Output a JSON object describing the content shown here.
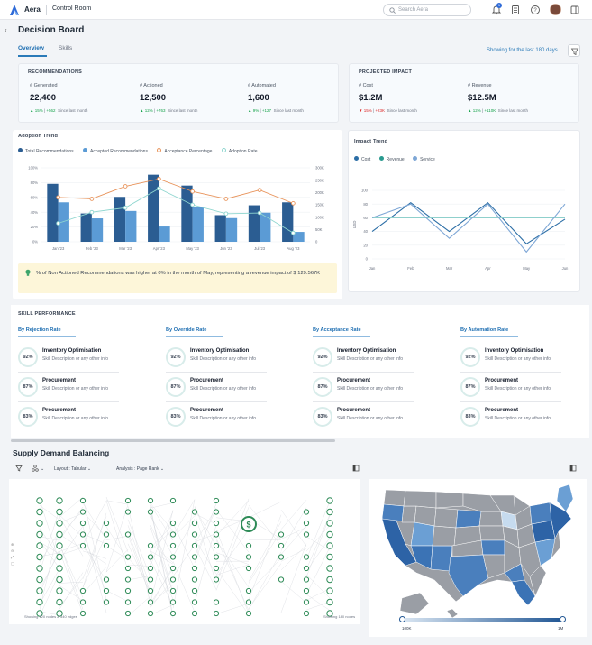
{
  "app": {
    "brand": "Aera",
    "name": "Control Room",
    "search_placeholder": "Search Aera",
    "notification_count": "1"
  },
  "page": {
    "title": "Decision Board",
    "tabs": [
      "Overview",
      "Skills"
    ],
    "active_tab": "Overview",
    "showing_text": "Showing for the last 180 days"
  },
  "recommendations": {
    "title": "RECOMMENDATIONS",
    "metrics": [
      {
        "label": "# Generated",
        "value": "22,400",
        "pct": "15%",
        "abs": "+562",
        "note": "Since last month"
      },
      {
        "label": "# Actioned",
        "value": "12,500",
        "pct": "12%",
        "abs": "+763",
        "note": "Since last month"
      },
      {
        "label": "# Automated",
        "value": "1,600",
        "pct": "9%",
        "abs": "+127",
        "note": "Since last month"
      }
    ]
  },
  "projected": {
    "title": "PROJECTED IMPACT",
    "metrics": [
      {
        "label": "# Cost",
        "value": "$1.2M",
        "pct": "15%",
        "abs": "+23K",
        "note": "Since last month",
        "direction": "down"
      },
      {
        "label": "# Revenue",
        "value": "$12.5M",
        "pct": "12%",
        "abs": "+110K",
        "note": "Since last month",
        "direction": "up"
      }
    ]
  },
  "adoption": {
    "title": "Adoption Trend",
    "legend": [
      "Total Recommendations",
      "Accepted Recommendations",
      "Acceptance Percentage",
      "Adoption Rate"
    ],
    "insight": "% of Non Actioned Recommendations was higher at 0% in the month of May, representing a revenue impact of $ 129.567K"
  },
  "impact": {
    "title": "Impact Trend",
    "legend": [
      "Cost",
      "Revenue",
      "Service"
    ]
  },
  "chart_data": [
    {
      "type": "bar",
      "title": "Adoption Trend",
      "categories": [
        "Jan '23",
        "Feb '23",
        "Mar '23",
        "Apr '23",
        "May '23",
        "Jun '23",
        "Jul '23",
        "Aug '23"
      ],
      "y_ticks_left": [
        "100%",
        "80%",
        "60%",
        "40%",
        "20%",
        "0%"
      ],
      "y_ticks_right": [
        "300K",
        "250K",
        "200K",
        "150K",
        "100K",
        "50K",
        "0"
      ],
      "ylim_left": [
        0,
        100
      ],
      "ylim_right": [
        0,
        300
      ],
      "series": [
        {
          "name": "Total Recommendations",
          "axis": "right",
          "values": [
            235,
            115,
            182,
            272,
            228,
            108,
            148,
            160
          ]
        },
        {
          "name": "Accepted Recommendations",
          "axis": "right",
          "values": [
            160,
            95,
            125,
            62,
            140,
            96,
            118,
            40
          ]
        },
        {
          "name": "Acceptance Percentage",
          "axis": "left",
          "values": [
            60,
            58,
            75,
            85,
            68,
            58,
            70,
            52
          ]
        },
        {
          "name": "Adoption Rate",
          "axis": "left",
          "values": [
            25,
            40,
            46,
            72,
            50,
            38,
            39,
            12
          ]
        }
      ],
      "colors": [
        "#2b5d92",
        "#5b9bd5",
        "#e8935a",
        "#8fd6cf"
      ]
    },
    {
      "type": "line",
      "title": "Impact Trend",
      "categories": [
        "Jan",
        "Feb",
        "Mar",
        "Apr",
        "May",
        "Jun"
      ],
      "y_ticks": [
        "100",
        "80",
        "60",
        "40",
        "20",
        "0"
      ],
      "ylim": [
        0,
        100
      ],
      "ylabel": "USD",
      "series": [
        {
          "name": "Cost",
          "values": [
            40,
            82,
            40,
            82,
            22,
            58
          ]
        },
        {
          "name": "Revenue",
          "values": [
            60,
            60,
            60,
            60,
            60,
            60
          ]
        },
        {
          "name": "Service",
          "values": [
            60,
            80,
            30,
            80,
            10,
            80
          ]
        }
      ],
      "colors": [
        "#2c6ea6",
        "#8fd0cc",
        "#7ea7d6"
      ]
    }
  ],
  "skills": {
    "title": "SKILL PERFORMANCE",
    "columns": [
      {
        "label": "By Rejection Rate",
        "items": [
          {
            "pct": "92%",
            "name": "Inventory Optimisation",
            "desc": "Skill Description or any other info"
          },
          {
            "pct": "87%",
            "name": "Procurement",
            "desc": "Skill Description or any other info"
          },
          {
            "pct": "83%",
            "name": "Procurement",
            "desc": "Skill Description or any other info"
          }
        ]
      },
      {
        "label": "By Override Rate",
        "items": [
          {
            "pct": "92%",
            "name": "Inventory Optimisation",
            "desc": "Skill Description or any other info"
          },
          {
            "pct": "87%",
            "name": "Procurement",
            "desc": "Skill Description or any other info"
          },
          {
            "pct": "83%",
            "name": "Procurement",
            "desc": "Skill Description or any other info"
          }
        ]
      },
      {
        "label": "By Acceptance Rate",
        "items": [
          {
            "pct": "92%",
            "name": "Inventory Optimisation",
            "desc": "Skill Description or any other info"
          },
          {
            "pct": "87%",
            "name": "Procurement",
            "desc": "Skill Description or any other info"
          },
          {
            "pct": "83%",
            "name": "Procurement",
            "desc": "Skill Description or any other info"
          }
        ]
      },
      {
        "label": "By Automation Rate",
        "items": [
          {
            "pct": "92%",
            "name": "Inventory Optimisation",
            "desc": "Skill Description or any other info"
          },
          {
            "pct": "87%",
            "name": "Procurement",
            "desc": "Skill Description or any other info"
          },
          {
            "pct": "83%",
            "name": "Procurement",
            "desc": "Skill Description or any other info"
          }
        ]
      }
    ]
  },
  "supply": {
    "title": "Supply Demand Balancing",
    "layout": "Layout : Tabular",
    "analysis": "Analysis : Page Rank",
    "net_footer_left": "Showing 120 nodes & 340 edges",
    "net_footer_right": "Showing   180 nodes",
    "gradient_min": "100K",
    "gradient_max": "1M"
  },
  "colors": {
    "accent": "#2a7ab8",
    "dark_bar": "#2b5d92",
    "light_bar": "#5b9bd5",
    "orange": "#e8935a",
    "teal": "#8fd6cf",
    "node": "#2e8b57",
    "insight_bg": "#fdf6d9"
  }
}
